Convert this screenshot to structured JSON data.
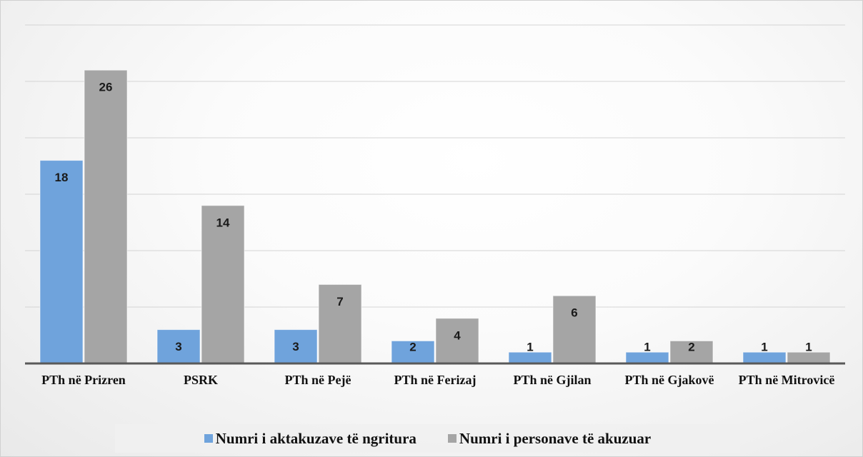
{
  "chart_data": {
    "type": "bar",
    "categories": [
      "PTh në Prizren",
      "PSRK",
      "PTh në Pejë",
      "PTh në Ferizaj",
      "PTh në Gjilan",
      "PTh në Gjakovë",
      "PTh në Mitrovicë"
    ],
    "series": [
      {
        "name": "Numri i aktakuzave të ngritura",
        "color": "#6fa3dc",
        "values": [
          18,
          3,
          3,
          2,
          1,
          1,
          1
        ]
      },
      {
        "name": "Numri i personave të akuzuar",
        "color": "#a5a5a5",
        "values": [
          26,
          14,
          7,
          4,
          6,
          2,
          1
        ]
      }
    ],
    "ylim": [
      0,
      30
    ],
    "yticks": [
      0,
      5,
      10,
      15,
      20,
      25,
      30
    ],
    "grid": true,
    "legend": "bottom"
  }
}
